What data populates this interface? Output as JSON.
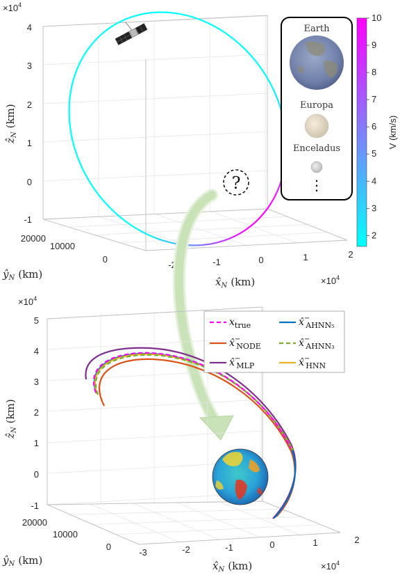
{
  "top_panel": {
    "exponent": "×10",
    "exponent_power": "4",
    "z_ticks": [
      "-1",
      "0",
      "1",
      "2",
      "3",
      "4"
    ],
    "x_ticks": [
      "-2",
      "-1",
      "0",
      "1",
      "2"
    ],
    "x_exponent": "×10",
    "x_exponent_power": "4",
    "y_ticks": [
      "0",
      "10000",
      "20000"
    ],
    "z_label": "ẑ",
    "z_label_sub": "N",
    "z_label_unit": "(km)",
    "x_label": "x̂",
    "x_label_sub": "N",
    "x_label_unit": "(km)",
    "y_label": "ŷ",
    "y_label_sub": "N",
    "y_label_unit": "(km)",
    "bodies": [
      "Earth",
      "Europa",
      "Enceladus"
    ],
    "more": "⋮",
    "unknown_mark": "?",
    "colorbar": {
      "label": "V (km/s)",
      "ticks": [
        "2",
        "3",
        "4",
        "5",
        "6",
        "7",
        "8",
        "9",
        "10"
      ],
      "min": 1.6,
      "max": 10,
      "color_low": "#00ffff",
      "color_high": "#ff00ff"
    }
  },
  "bottom_panel": {
    "exponent": "×10",
    "exponent_power": "4",
    "z_ticks": [
      "-1",
      "0",
      "1",
      "2",
      "3",
      "4",
      "5"
    ],
    "x_ticks": [
      "-3",
      "-2",
      "-1",
      "0",
      "1",
      "2"
    ],
    "x_exponent": "×10",
    "x_exponent_power": "4",
    "y_ticks": [
      "0",
      "10000",
      "20000"
    ],
    "z_label": "ẑ",
    "z_label_sub": "N",
    "z_label_unit": "(km)",
    "x_label": "x̂",
    "x_label_sub": "N",
    "x_label_unit": "(km)",
    "y_label": "ŷ",
    "y_label_sub": "N",
    "y_label_unit": "(km)",
    "legend": [
      {
        "base": "x",
        "hat": false,
        "minus": false,
        "sub": "true",
        "color": "#ff00ff",
        "dash": "6,4"
      },
      {
        "base": "x̂",
        "hat": true,
        "minus": true,
        "sub": "AHNN₅",
        "color": "#0072bd",
        "dash": ""
      },
      {
        "base": "x̂",
        "hat": true,
        "minus": true,
        "sub": "NODE",
        "color": "#d95319",
        "dash": ""
      },
      {
        "base": "x̂",
        "hat": true,
        "minus": true,
        "sub": "AHNN₃",
        "color": "#77ac30",
        "dash": "6,4"
      },
      {
        "base": "x̂",
        "hat": true,
        "minus": true,
        "sub": "MLP",
        "color": "#7e2f8e",
        "dash": ""
      },
      {
        "base": "x̂",
        "hat": true,
        "minus": true,
        "sub": "HNN",
        "color": "#edb120",
        "dash": ""
      }
    ]
  }
}
